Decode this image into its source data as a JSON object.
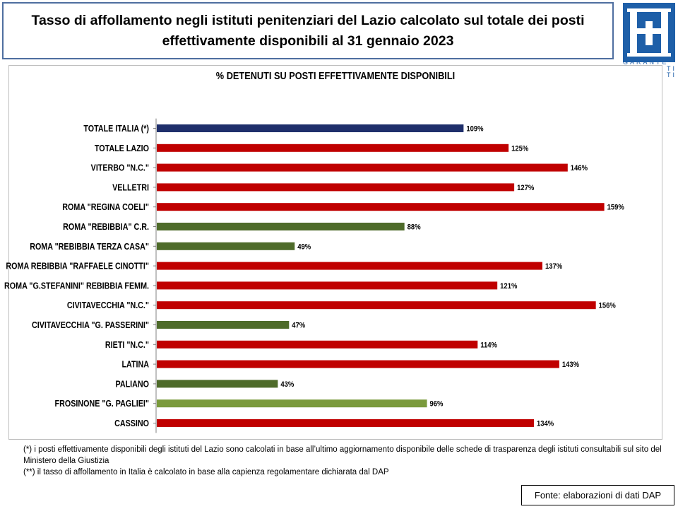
{
  "header": {
    "title_line1": "Tasso di affollamento negli istituti penitenziari del Lazio calcolato sul totale dei posti",
    "title_line2": "effettivamente disponibili al 31 gennaio 2023"
  },
  "logo": {
    "text_line1": "GARANTE",
    "text_line2": "TI",
    "text_line3": "TI",
    "color": "#1e5fa8"
  },
  "chart_data": {
    "type": "bar",
    "orientation": "horizontal",
    "title": "% DETENUTI SU POSTI EFFETTIVAMENTE DISPONIBILI",
    "xlabel": "",
    "ylabel": "",
    "xlim": [
      0,
      165
    ],
    "grid": false,
    "legend": "none",
    "categories": [
      "TOTALE ITALIA (*)",
      "TOTALE LAZIO",
      "VITERBO \"N.C.\"",
      "VELLETRI",
      "ROMA \"REGINA COELI\"",
      "ROMA \"REBIBBIA\" C.R.",
      "ROMA \"REBIBBIA TERZA CASA\"",
      "ROMA REBIBBIA \"RAFFAELE CINOTTI\"",
      "ROMA \"G.STEFANINI\" REBIBBIA FEMM.",
      "CIVITAVECCHIA \"N.C.\"",
      "CIVITAVECCHIA \"G. PASSERINI\"",
      "RIETI \"N.C.\"",
      "LATINA",
      "PALIANO",
      "FROSINONE \"G. PAGLIEI\"",
      "CASSINO"
    ],
    "values": [
      109,
      125,
      146,
      127,
      159,
      88,
      49,
      137,
      121,
      156,
      47,
      114,
      143,
      43,
      96,
      134
    ],
    "value_labels": [
      "109%",
      "125%",
      "146%",
      "127%",
      "159%",
      "88%",
      "49%",
      "137%",
      "121%",
      "156%",
      "47%",
      "114%",
      "143%",
      "43%",
      "96%",
      "134%"
    ],
    "colors": [
      "#1f2f6b",
      "#c00000",
      "#c00000",
      "#c00000",
      "#c00000",
      "#4e6b2a",
      "#4e6b2a",
      "#c00000",
      "#c00000",
      "#c00000",
      "#4e6b2a",
      "#c00000",
      "#c00000",
      "#4e6b2a",
      "#7a9a3c",
      "#c00000"
    ]
  },
  "notes": {
    "line1": "(*) i posti effettivamente disponibili  degli istituti del Lazio sono calcolati in base all’ultimo aggiornamento disponibile  delle schede  di trasparenza degli istituti consultabili sul sito del Ministero della Giustizia",
    "line2": "(**) il tasso di affollamento in Italia è calcolato in base alla capienza regolamentare dichiarata dal DAP"
  },
  "source": "Fonte: elaborazioni di dati DAP"
}
